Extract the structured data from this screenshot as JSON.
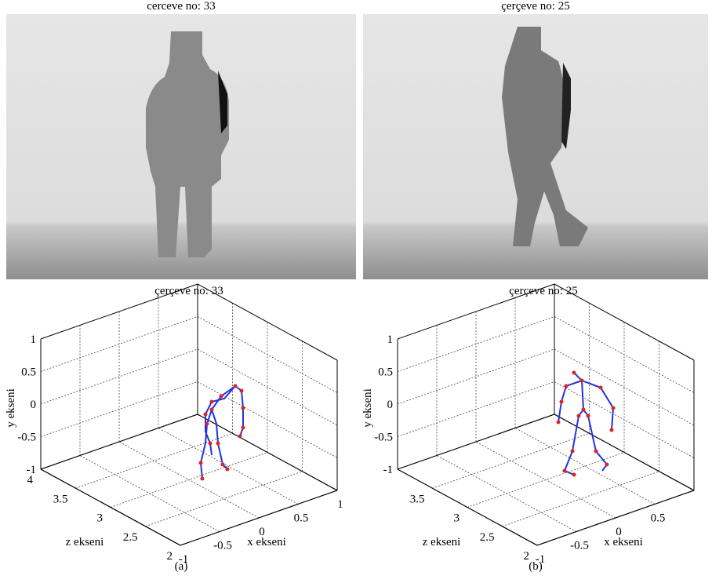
{
  "figure": {
    "panels": [
      {
        "image_title": "cerceve no: 33",
        "plot_title": "çerçeve no: 33",
        "y_label": "y ekseni",
        "z_label": "z ekseni",
        "x_label": "x ekseni",
        "y_ticks": [
          "1",
          "0.5",
          "0",
          "-0.5",
          "-1"
        ],
        "z_ticks": [
          "4",
          "3.5",
          "3",
          "2.5",
          "2"
        ],
        "x_ticks": [
          "-1",
          "-0.5",
          "0",
          "0.5",
          "1"
        ],
        "caption": "(a)"
      },
      {
        "image_title": "çerçeve no: 25",
        "plot_title": "çerçeve no: 25",
        "y_label": "y ekseni",
        "z_label": "z ekseni",
        "x_label": "x ekseni",
        "y_ticks": [
          "1",
          "0.5",
          "0",
          "-0.5",
          "-1"
        ],
        "z_ticks": [
          "3.5",
          "3",
          "2.5",
          "2"
        ],
        "x_ticks": [
          "-1",
          "-0.5",
          "0",
          "0.5"
        ],
        "caption": "(b)"
      }
    ]
  }
}
